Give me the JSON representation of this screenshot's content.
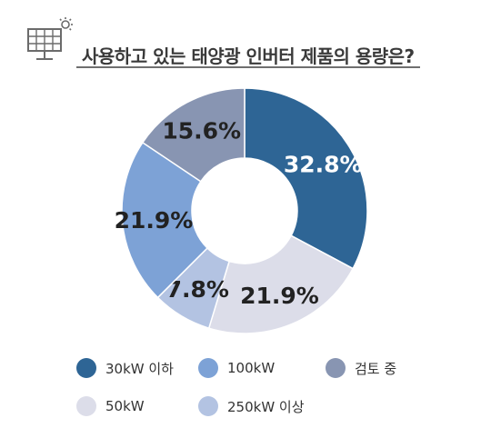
{
  "header": {
    "title": "사용하고 있는 태양광 인버터 제품의 용량은?",
    "icon": "solar-panel-icon"
  },
  "chart_data": {
    "type": "pie",
    "variant": "donut",
    "categories": [
      "30kW 이하",
      "50kW",
      "250kW 이상",
      "100kW",
      "검토 중"
    ],
    "values": [
      32.8,
      21.9,
      7.8,
      21.9,
      15.6
    ],
    "value_labels": [
      "32.8%",
      "21.9%",
      "7.8%",
      "21.9%",
      "15.6%"
    ],
    "colors": [
      "#2e6595",
      "#dcdde9",
      "#b3c3e2",
      "#7da2d6",
      "#8895b2"
    ],
    "label_colors": [
      "#ffffff",
      "#222222",
      "#222222",
      "#222222",
      "#222222"
    ],
    "legend_placement": "bottom"
  },
  "legend": [
    {
      "label": "30kW 이하",
      "color": "#2e6595"
    },
    {
      "label": "100kW",
      "color": "#7da2d6"
    },
    {
      "label": "검토 중",
      "color": "#8895b2"
    },
    {
      "label": "50kW",
      "color": "#dcdde9"
    },
    {
      "label": "250kW 이상",
      "color": "#b3c3e2"
    }
  ]
}
